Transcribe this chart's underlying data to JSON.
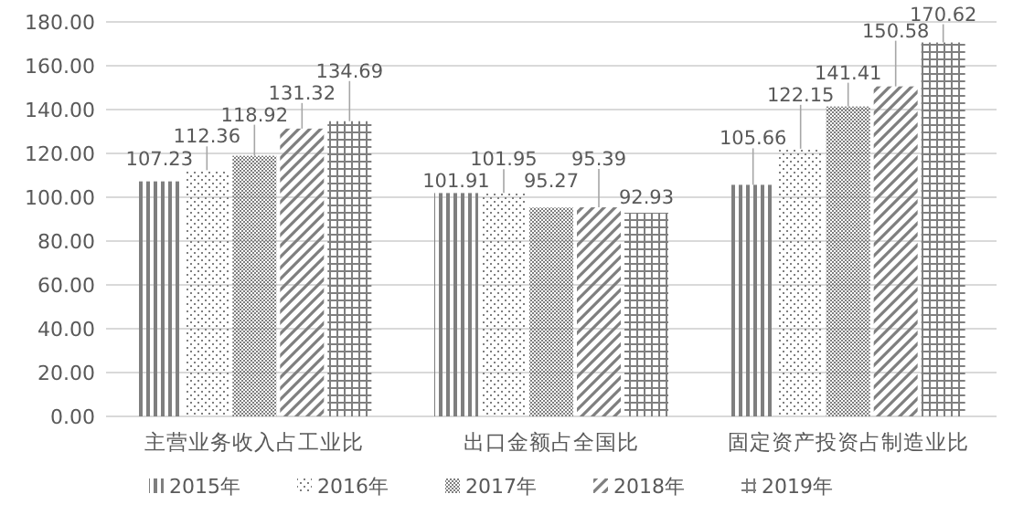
{
  "chart_data": {
    "type": "bar",
    "categories": [
      "主营业务收入占工业比",
      "出口金额占全国比",
      "固定资产投资占制造业比"
    ],
    "series": [
      {
        "name": "2015年",
        "color": "#7f7f7f",
        "values": [
          107.23,
          101.91,
          105.66
        ]
      },
      {
        "name": "2016年",
        "color": "#7f7f7f",
        "values": [
          112.36,
          101.95,
          122.15
        ]
      },
      {
        "name": "2017年",
        "color": "#7f7f7f",
        "values": [
          118.92,
          95.27,
          141.41
        ]
      },
      {
        "name": "2018年",
        "color": "#7f7f7f",
        "values": [
          131.32,
          95.39,
          150.58
        ]
      },
      {
        "name": "2019年",
        "color": "#7f7f7f",
        "values": [
          134.69,
          92.93,
          170.62
        ]
      }
    ],
    "ylim": [
      0,
      180
    ],
    "yticks": [
      {
        "value": 0,
        "label": "0.00"
      },
      {
        "value": 20,
        "label": "20.00"
      },
      {
        "value": 40,
        "label": "40.00"
      },
      {
        "value": 60,
        "label": "60.00"
      },
      {
        "value": 80,
        "label": "80.00"
      },
      {
        "value": 100,
        "label": "100.00"
      },
      {
        "value": 120,
        "label": "120.00"
      },
      {
        "value": 140,
        "label": "140.00"
      },
      {
        "value": 160,
        "label": "160.00"
      },
      {
        "value": 180,
        "label": "180.00"
      }
    ],
    "grid": "y",
    "legend": "bottom",
    "data_labels": true
  }
}
